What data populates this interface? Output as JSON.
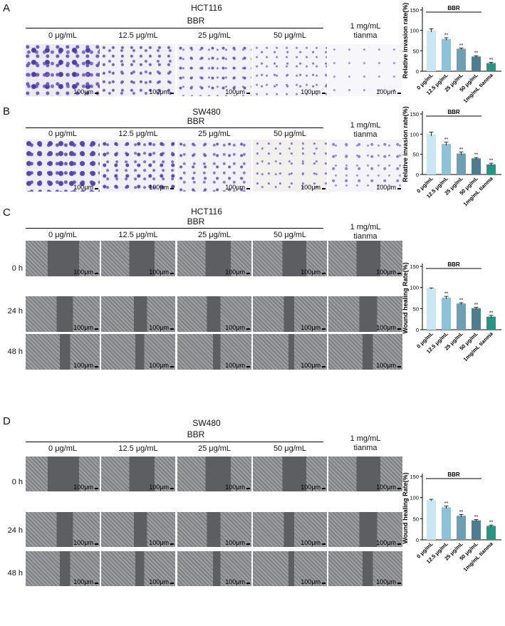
{
  "panels": [
    {
      "letter": "A",
      "cell_line": "HCT116",
      "assay": "invasion",
      "group": "BBR",
      "conditions": [
        "0 μg/mL",
        "12.5 μg/mL",
        "25 μg/mL",
        "50 μg/mL"
      ],
      "control": [
        "1 mg/mL",
        "tianma"
      ],
      "scale": "100μm",
      "times": []
    },
    {
      "letter": "B",
      "cell_line": "SW480",
      "assay": "invasion",
      "group": "BBR",
      "conditions": [
        "0 μg/mL",
        "12.5 μg/mL",
        "25 μg/mL",
        "50 μg/mL"
      ],
      "control": [
        "1 mg/mL",
        "tianma"
      ],
      "scale": "100μm",
      "times": []
    },
    {
      "letter": "C",
      "cell_line": "HCT116",
      "assay": "wound",
      "group": "BBR",
      "conditions": [
        "0 μg/mL",
        "12.5 μg/mL",
        "25 μg/mL",
        "50 μg/mL"
      ],
      "control": [
        "1 mg/mL",
        "tianma"
      ],
      "scale": "100μm",
      "times": [
        "0 h",
        "24 h",
        "48 h"
      ]
    },
    {
      "letter": "D",
      "cell_line": "SW480",
      "assay": "wound",
      "group": "BBR",
      "conditions": [
        "0 μg/mL",
        "12.5 μg/mL",
        "25 μg/mL",
        "50 μg/mL"
      ],
      "control": [
        "1 mg/mL",
        "tianma"
      ],
      "scale": "100μm",
      "times": [
        "0 h",
        "24 h",
        "48 h"
      ]
    }
  ],
  "chart_data": [
    {
      "type": "bar",
      "ylabel": "Relative invasion rate(%)",
      "bracket_label": "BBR",
      "categories": [
        "0 μg/mL",
        "12.5 μg/mL",
        "25 μg/mL",
        "50 μg/mL",
        "1mg/mL tianma"
      ],
      "values": [
        100,
        79,
        55,
        36,
        20
      ],
      "errors": [
        4,
        3,
        2,
        2,
        2
      ],
      "significance": [
        "",
        "**",
        "**",
        "**",
        "**"
      ],
      "ylim": [
        0,
        150
      ],
      "yticks": [
        0,
        50,
        100,
        150
      ],
      "colors": [
        "#c9e7f2",
        "#8fc2d6",
        "#6e9fb5",
        "#4f7d8e",
        "#2b9383"
      ]
    },
    {
      "type": "bar",
      "ylabel": "Relative invasion rate(%)",
      "bracket_label": "BBR",
      "categories": [
        "0 μg/mL",
        "12.5 μg/mL",
        "25 μg/mL",
        "50 μg/mL",
        "1mg/mL tianma"
      ],
      "values": [
        100,
        76,
        52,
        40,
        25
      ],
      "errors": [
        5,
        4,
        4,
        2,
        3
      ],
      "significance": [
        "",
        "**",
        "**",
        "**",
        "**"
      ],
      "ylim": [
        0,
        150
      ],
      "yticks": [
        0,
        50,
        100,
        150
      ],
      "colors": [
        "#c9e7f2",
        "#8fc2d6",
        "#6e9fb5",
        "#4f7d8e",
        "#2b9383"
      ]
    },
    {
      "type": "bar",
      "ylabel": "Wound healing Rate(%)",
      "bracket_label": "BBR",
      "categories": [
        "0 μg/mL",
        "12.5 μg/mL",
        "25 μg/mL",
        "50 μg/mL",
        "1mg/mL tianma"
      ],
      "values": [
        98,
        76,
        62,
        51,
        31
      ],
      "errors": [
        1,
        3,
        2,
        2,
        3
      ],
      "significance": [
        "",
        "**",
        "**",
        "**",
        "**"
      ],
      "ylim": [
        0,
        150
      ],
      "yticks": [
        0,
        50,
        100,
        150
      ],
      "colors": [
        "#c9e7f2",
        "#8fc2d6",
        "#6e9fb5",
        "#4f7d8e",
        "#2b9383"
      ]
    },
    {
      "type": "bar",
      "ylabel": "Wound healing Rate(%)",
      "bracket_label": "BBR",
      "categories": [
        "0 μg/mL",
        "12.5 μg/mL",
        "25 μg/mL",
        "50 μg/mL",
        "1mg/mL tianma"
      ],
      "values": [
        94,
        77,
        57,
        46,
        33
      ],
      "errors": [
        2,
        3,
        3,
        2,
        2
      ],
      "significance": [
        "",
        "**",
        "**",
        "**",
        "**"
      ],
      "ylim": [
        0,
        150
      ],
      "yticks": [
        0,
        50,
        100,
        150
      ],
      "colors": [
        "#c9e7f2",
        "#8fc2d6",
        "#6e9fb5",
        "#4f7d8e",
        "#2b9383"
      ]
    }
  ]
}
